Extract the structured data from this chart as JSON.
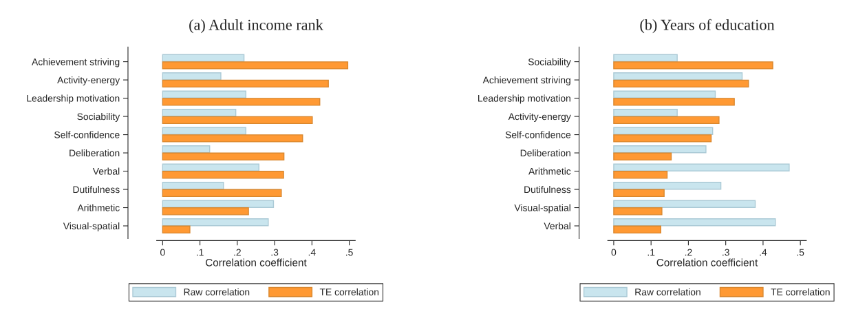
{
  "chart_data": [
    {
      "type": "bar",
      "orientation": "horizontal",
      "title": "(a) Adult income rank",
      "xlabel": "Correlation coefficient",
      "categories": [
        "Achievement striving",
        "Activity-energy",
        "Leadership motivation",
        "Sociability",
        "Self-confidence",
        "Deliberation",
        "Verbal",
        "Dutifulness",
        "Arithmetic",
        "Visual-spatial"
      ],
      "series": [
        {
          "name": "Raw correlation",
          "color": "#c9e5ee",
          "values": [
            0.218,
            0.156,
            0.223,
            0.196,
            0.223,
            0.126,
            0.258,
            0.163,
            0.297,
            0.283
          ]
        },
        {
          "name": "TE correlation",
          "color": "#ff9933",
          "values": [
            0.496,
            0.444,
            0.421,
            0.401,
            0.375,
            0.325,
            0.324,
            0.318,
            0.23,
            0.073
          ]
        }
      ],
      "xlim": [
        -0.016,
        0.516
      ],
      "xticks": [
        0,
        {
          "value": 0.1,
          "label": ".1"
        },
        {
          "value": 0.2,
          "label": ".2"
        },
        {
          "value": 0.3,
          "label": ".3"
        },
        {
          "value": 0.4,
          "label": ".4"
        },
        {
          "value": 0.5,
          "label": ".5"
        }
      ],
      "legend": "bottom"
    },
    {
      "type": "bar",
      "orientation": "horizontal",
      "title": "(b) Years of education",
      "xlabel": "Correlation coefficient",
      "categories": [
        "Sociability",
        "Achievement striving",
        "Leadership motivation",
        "Activity-energy",
        "Self-confidence",
        "Deliberation",
        "Arithmetic",
        "Dutifulness",
        "Visual-spatial",
        "Verbal"
      ],
      "series": [
        {
          "name": "Raw correlation",
          "color": "#c9e5ee",
          "values": [
            0.17,
            0.344,
            0.272,
            0.17,
            0.265,
            0.247,
            0.47,
            0.287,
            0.379,
            0.433
          ]
        },
        {
          "name": "TE correlation",
          "color": "#ff9933",
          "values": [
            0.426,
            0.361,
            0.323,
            0.282,
            0.261,
            0.154,
            0.143,
            0.135,
            0.129,
            0.126
          ]
        }
      ],
      "xlim": [
        -0.016,
        0.516
      ],
      "xticks": [
        0,
        {
          "value": 0.1,
          "label": ".1"
        },
        {
          "value": 0.2,
          "label": ".2"
        },
        {
          "value": 0.3,
          "label": ".3"
        },
        {
          "value": 0.4,
          "label": ".4"
        },
        {
          "value": 0.5,
          "label": ".5"
        }
      ],
      "legend": "bottom"
    }
  ]
}
